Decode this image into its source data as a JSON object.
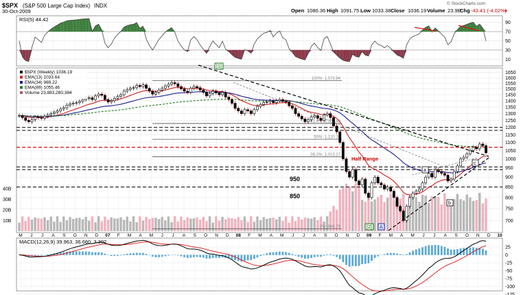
{
  "header": {
    "symbol": "$SPX",
    "name": "(S&P 500 Large Cap Index)",
    "exchange": "INDX",
    "date": "30-Oct-2009",
    "watermark": "© StockCharts.com",
    "open_label": "Open",
    "open": "1080.36",
    "high_label": "High",
    "high": "1091.75",
    "low_label": "Low",
    "low": "1033.38",
    "close_label": "Close",
    "close": "1036.19",
    "volume_label": "Volume",
    "volume": "23.9B",
    "chg_label": "Chg",
    "chg": "-43.41 (-4.02%)",
    "chg_arrow": "▼"
  },
  "rsi": {
    "label": "RSI(5) 44.42",
    "ticks": [
      "90",
      "70",
      "50",
      "30",
      "10"
    ],
    "overbought": 70,
    "oversold": 30,
    "color_up": "#3f7f3f",
    "color_down": "#8b3a4a"
  },
  "price": {
    "legend": [
      {
        "text": "$SPX (Weekly) 1036.19",
        "color": "#000000"
      },
      {
        "text": "EMA(13) 1033.64",
        "color": "#d11f1f"
      },
      {
        "text": "EMA(34) 989.22",
        "color": "#1c1c8c"
      },
      {
        "text": "EMA(89) 1055.46",
        "color": "#1f7a1f"
      },
      {
        "text": "Volume 23,883,280,384",
        "color": "#b05570"
      }
    ],
    "y_ticks": [
      "1650",
      "1600",
      "1550",
      "1500",
      "1450",
      "1400",
      "1350",
      "1300",
      "1250",
      "1200",
      "1150",
      "1100",
      "1050",
      "1000",
      "950",
      "900",
      "850",
      "800",
      "750",
      "700"
    ],
    "vol_ticks": [
      "40B",
      "30B",
      "20B",
      "10B"
    ],
    "fib_labels": [
      "100%: 1,573.64",
      "61.8%: 1,227.40",
      "50%: 1,120.16",
      "38.2%: 1,013.17",
      "0%: 666.79"
    ],
    "annotations": {
      "wave1": "[1]",
      "wave2": "[2]",
      "waveA": "A",
      "a": "a",
      "b": "b",
      "c": "c",
      "half_range": "Half Range",
      "level950": "950",
      "level850": "850"
    }
  },
  "x_axis": {
    "labels": [
      "M",
      "J",
      "J",
      "A",
      "S",
      "O",
      "N",
      "D",
      "07",
      "F",
      "M",
      "A",
      "M",
      "J",
      "J",
      "A",
      "S",
      "O",
      "N",
      "D",
      "08",
      "F",
      "M",
      "A",
      "M",
      "J",
      "J",
      "A",
      "S",
      "O",
      "N",
      "D",
      "09",
      "F",
      "M",
      "A",
      "M",
      "J",
      "J",
      "A",
      "S",
      "O",
      "N",
      "D",
      "10"
    ]
  },
  "macd": {
    "label": "MACD(12,26,9) 39.963, 36.660, 3.302",
    "ticks": [
      "25",
      "0",
      "-25",
      "-50",
      "-75",
      "-100",
      "-125"
    ]
  },
  "chart_data": {
    "type": "candlestick",
    "title": "$SPX (S&P 500 Large Cap Index) INDX",
    "period": "Weekly",
    "x_range": [
      "2006-05",
      "2009-10"
    ],
    "ylim": [
      666,
      1660
    ],
    "y_scale": "log",
    "close_series": [
      1285,
      1270,
      1250,
      1240,
      1255,
      1275,
      1270,
      1265,
      1280,
      1290,
      1300,
      1310,
      1320,
      1335,
      1345,
      1365,
      1375,
      1380,
      1385,
      1395,
      1410,
      1420,
      1425,
      1410,
      1440,
      1455,
      1445,
      1410,
      1390,
      1400,
      1420,
      1435,
      1450,
      1480,
      1495,
      1505,
      1510,
      1530,
      1520,
      1535,
      1505,
      1480,
      1455,
      1470,
      1490,
      1505,
      1525,
      1540,
      1555,
      1545,
      1520,
      1500,
      1480,
      1470,
      1505,
      1520,
      1510,
      1490,
      1470,
      1440,
      1460,
      1480,
      1465,
      1450,
      1470,
      1430,
      1410,
      1380,
      1340,
      1320,
      1300,
      1330,
      1320,
      1300,
      1330,
      1355,
      1370,
      1385,
      1390,
      1400,
      1385,
      1400,
      1410,
      1395,
      1390,
      1360,
      1340,
      1300,
      1280,
      1260,
      1240,
      1255,
      1275,
      1285,
      1265,
      1250,
      1290,
      1300,
      1270,
      1210,
      1170,
      1100,
      1000,
      930,
      900,
      940,
      880,
      860,
      890,
      820,
      800,
      870,
      900,
      870,
      860,
      840,
      850,
      830,
      800,
      760,
      740,
      700,
      760,
      800,
      820,
      830,
      840,
      870,
      900,
      920,
      900,
      940,
      930,
      920,
      910,
      880,
      890,
      930,
      960,
      1000,
      1010,
      1030,
      1050,
      1070,
      1060,
      1090,
      1080,
      1036
    ],
    "series": [
      {
        "name": "EMA(13)",
        "last": 1033.64
      },
      {
        "name": "EMA(34)",
        "last": 989.22
      },
      {
        "name": "EMA(89)",
        "last": 1055.46
      }
    ],
    "levels": [
      {
        "label": "100%: 1,573.64",
        "value": 1573.64
      },
      {
        "label": "61.8%: 1,227.40",
        "value": 1227.4
      },
      {
        "label": "50%: 1,120.16",
        "value": 1120.16
      },
      {
        "label": "38.2%: 1,013.17",
        "value": 1013.17
      },
      {
        "label": "0%: 666.79",
        "value": 666.79
      },
      {
        "label": "Half Range",
        "value": 1070
      },
      {
        "label": "950",
        "value": 950
      },
      {
        "label": "850",
        "value": 850
      }
    ],
    "rsi_last": 44.42,
    "macd_last": [
      39.963,
      36.66,
      3.302
    ],
    "grid": true
  }
}
